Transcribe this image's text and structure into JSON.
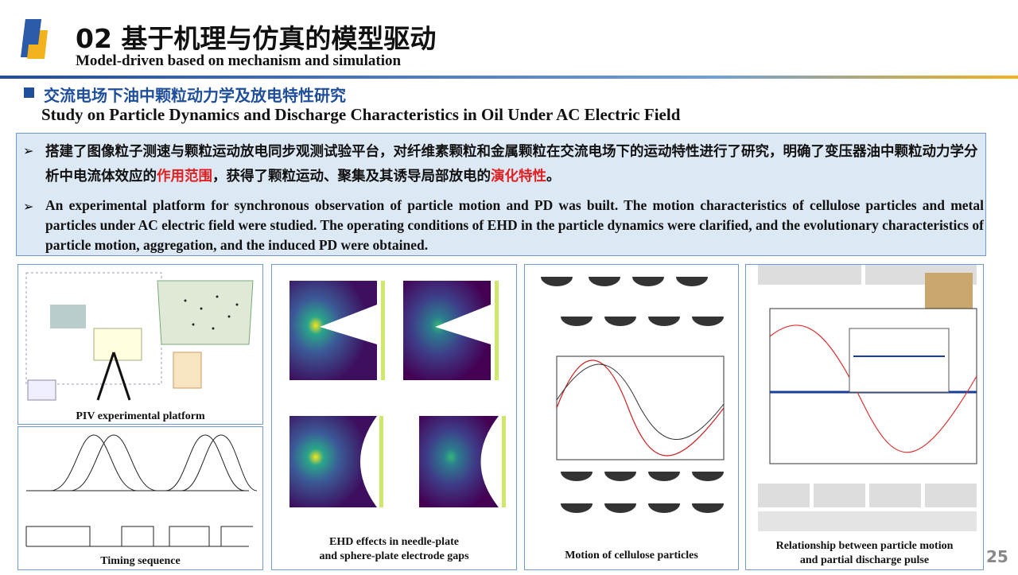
{
  "header": {
    "title": "02 基于机理与仿真的模型驱动",
    "subtitle": "Model-driven based on mechanism and simulation"
  },
  "section": {
    "title_cn": "交流电场下油中颗粒动力学及放电特性研究",
    "title_en": "Study on Particle Dynamics and Discharge Characteristics in Oil Under AC Electric Field"
  },
  "bullets": {
    "cn": [
      "搭建了图像粒子测速与颗粒运动放电同步观测试验平台，对纤维素颗粒和金属颗粒在交流电场下的运动特性进行了研究，明确了变压器油中颗粒动力学分析中电流体效应的",
      "作用范围",
      "，获得了颗粒运动、聚集及其诱导局部放电的",
      "演化特性",
      "。"
    ],
    "en": "An experimental platform for synchronous observation of particle motion and PD was built. The motion characteristics of cellulose particles and metal particles under AC electric field were studied. The operating conditions of EHD in the particle dynamics were clarified, and the evolutionary characteristics of particle motion, aggregation, and the induced PD were obtained."
  },
  "figures": {
    "piv": "PIV experimental platform",
    "timing": "Timing sequence",
    "ehd": [
      "EHD effects in needle-plate",
      "and sphere-plate electrode gaps"
    ],
    "motion": "Motion of cellulose particles",
    "relation": [
      "Relationship between particle motion",
      "and partial discharge pulse"
    ]
  },
  "page_number": "25"
}
